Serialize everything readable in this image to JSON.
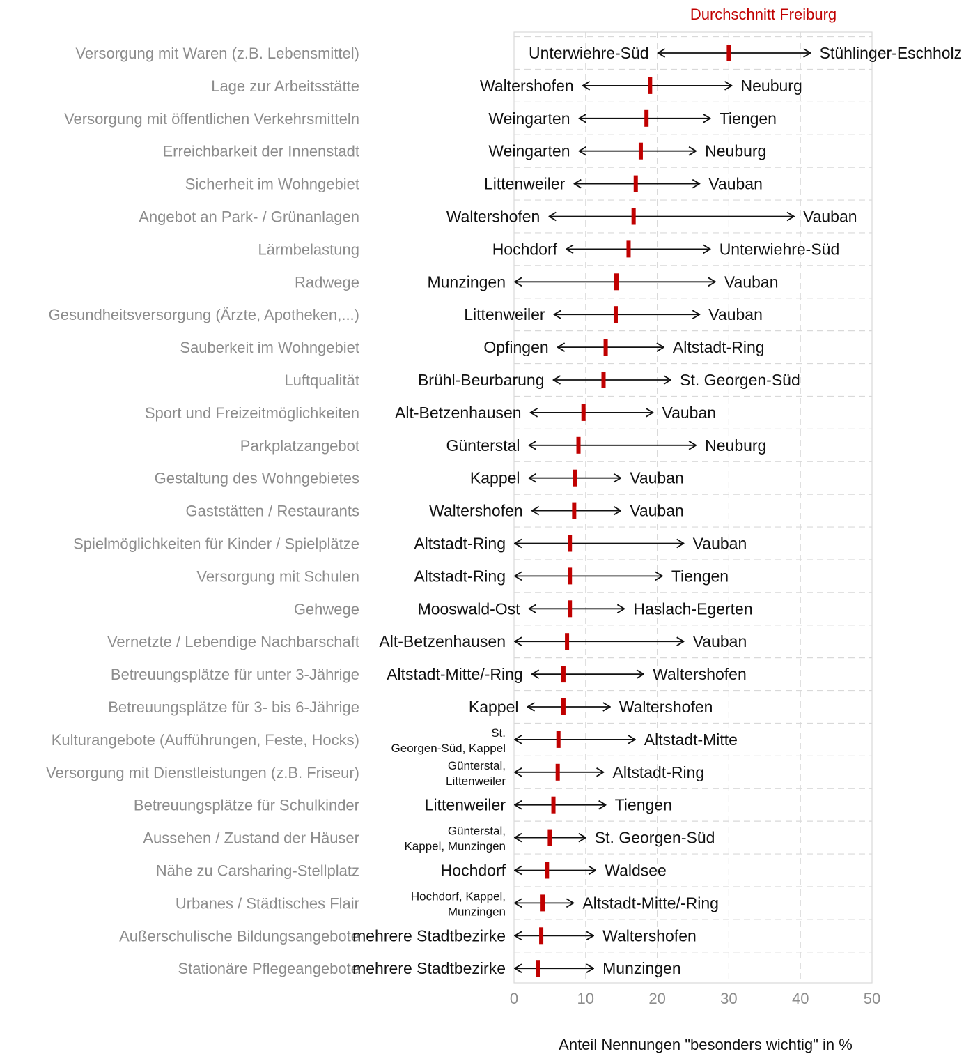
{
  "legend": {
    "label": "Durchschnitt Freiburg",
    "color": "#c00000"
  },
  "chart_data": {
    "type": "range",
    "title": "",
    "xlabel": "Anteil Nennungen \"besonders wichtig\" in %",
    "ylabel": "",
    "xlim": [
      0,
      50
    ],
    "xticks": [
      0,
      10,
      20,
      30,
      40,
      50
    ],
    "grid": true,
    "legend_position": "top",
    "series": [
      {
        "name": "Durchschnitt Freiburg",
        "color": "#c00000"
      }
    ],
    "rows": [
      {
        "category": "Versorgung mit Waren (z.B. Lebensmittel)",
        "min": 20,
        "avg": 30,
        "max": 41.5,
        "min_label": "Unterwiehre-Süd",
        "max_label": "Stühlinger-Eschholz"
      },
      {
        "category": "Lage zur Arbeitsstätte",
        "min": 9.5,
        "avg": 19,
        "max": 30.5,
        "min_label": "Waltershofen",
        "max_label": "Neuburg"
      },
      {
        "category": "Versorgung mit öffentlichen Verkehrsmitteln",
        "min": 9,
        "avg": 18.5,
        "max": 27.5,
        "min_label": "Weingarten",
        "max_label": "Tiengen"
      },
      {
        "category": "Erreichbarkeit der Innenstadt",
        "min": 9,
        "avg": 17.7,
        "max": 25.5,
        "min_label": "Weingarten",
        "max_label": "Neuburg"
      },
      {
        "category": "Sicherheit im Wohngebiet",
        "min": 8.3,
        "avg": 17,
        "max": 26,
        "min_label": "Littenweiler",
        "max_label": "Vauban"
      },
      {
        "category": "Angebot an Park- / Grünanlagen",
        "min": 4.8,
        "avg": 16.7,
        "max": 39.2,
        "min_label": "Waltershofen",
        "max_label": "Vauban"
      },
      {
        "category": "Lärmbelastung",
        "min": 7.2,
        "avg": 16,
        "max": 27.5,
        "min_label": "Hochdorf",
        "max_label": "Unterwiehre-Süd"
      },
      {
        "category": "Radwege",
        "min": 0,
        "avg": 14.3,
        "max": 28.2,
        "min_label": "Munzingen",
        "max_label": "Vauban"
      },
      {
        "category": "Gesundheitsversorgung (Ärzte, Apotheken,...)",
        "min": 5.5,
        "avg": 14.2,
        "max": 26,
        "min_label": "Littenweiler",
        "max_label": "Vauban"
      },
      {
        "category": "Sauberkeit im Wohngebiet",
        "min": 6,
        "avg": 12.8,
        "max": 21,
        "min_label": "Opfingen",
        "max_label": "Altstadt-Ring"
      },
      {
        "category": "Luftqualität",
        "min": 5.4,
        "avg": 12.5,
        "max": 22,
        "min_label": "Brühl-Beurbarung",
        "max_label": "St. Georgen-Süd"
      },
      {
        "category": "Sport und Freizeitmöglichkeiten",
        "min": 2.2,
        "avg": 9.7,
        "max": 19.5,
        "min_label": "Alt-Betzenhausen",
        "max_label": "Vauban"
      },
      {
        "category": "Parkplatzangebot",
        "min": 2,
        "avg": 9,
        "max": 25.5,
        "min_label": "Günterstal",
        "max_label": "Neuburg"
      },
      {
        "category": "Gestaltung des Wohngebietes",
        "min": 2,
        "avg": 8.5,
        "max": 15,
        "min_label": "Kappel",
        "max_label": "Vauban"
      },
      {
        "category": "Gaststätten / Restaurants",
        "min": 2.4,
        "avg": 8.4,
        "max": 15,
        "min_label": "Waltershofen",
        "max_label": "Vauban"
      },
      {
        "category": "Spielmöglichkeiten für Kinder / Spielplätze",
        "min": 0,
        "avg": 7.8,
        "max": 23.8,
        "min_label": "Altstadt-Ring",
        "max_label": "Vauban"
      },
      {
        "category": "Versorgung mit Schulen",
        "min": 0,
        "avg": 7.8,
        "max": 20.8,
        "min_label": "Altstadt-Ring",
        "max_label": "Tiengen"
      },
      {
        "category": "Gehwege",
        "min": 2,
        "avg": 7.8,
        "max": 15.5,
        "min_label": "Mooswald-Ost",
        "max_label": "Haslach-Egerten"
      },
      {
        "category": "Vernetzte / Lebendige Nachbarschaft",
        "min": 0,
        "avg": 7.4,
        "max": 23.8,
        "min_label": "Alt-Betzenhausen",
        "max_label": "Vauban"
      },
      {
        "category": "Betreuungsplätze für unter 3-Jährige",
        "min": 2.4,
        "avg": 6.9,
        "max": 18.2,
        "min_label": "Altstadt-Mitte/-Ring",
        "max_label": "Waltershofen"
      },
      {
        "category": "Betreuungsplätze für 3- bis 6-Jährige",
        "min": 1.8,
        "avg": 6.9,
        "max": 13.5,
        "min_label": "Kappel",
        "max_label": "Waltershofen"
      },
      {
        "category": "Kulturangebote (Aufführungen, Feste, Hocks)",
        "min": 0,
        "avg": 6.2,
        "max": 17,
        "min_label": "St. Georgen-Süd, Kappel",
        "max_label": "Altstadt-Mitte"
      },
      {
        "category": "Versorgung mit Dienstleistungen (z.B. Friseur)",
        "min": 0,
        "avg": 6.1,
        "max": 12.6,
        "min_label": "Günterstal, Littenweiler",
        "max_label": "Altstadt-Ring"
      },
      {
        "category": "Betreuungsplätze für Schulkinder",
        "min": 0,
        "avg": 5.5,
        "max": 12.9,
        "min_label": "Littenweiler",
        "max_label": "Tiengen"
      },
      {
        "category": "Aussehen / Zustand der Häuser",
        "min": 0,
        "avg": 5,
        "max": 10.1,
        "min_label": "Günterstal, Kappel, Munzingen",
        "max_label": "St. Georgen-Süd"
      },
      {
        "category": "Nähe zu Carsharing-Stellplatz",
        "min": 0,
        "avg": 4.6,
        "max": 11.5,
        "min_label": "Hochdorf",
        "max_label": "Waldsee"
      },
      {
        "category": "Urbanes / Städtisches Flair",
        "min": 0,
        "avg": 4,
        "max": 8.4,
        "min_label": "Hochdorf, Kappel, Munzingen",
        "max_label": "Altstadt-Mitte/-Ring"
      },
      {
        "category": "Außerschulische Bildungsangebote",
        "min": 0,
        "avg": 3.8,
        "max": 11.2,
        "min_label": "mehrere Stadtbezirke",
        "max_label": "Waltershofen"
      },
      {
        "category": "Stationäre Pflegeangebote",
        "min": 0,
        "avg": 3.4,
        "max": 11.2,
        "min_label": "mehrere Stadtbezirke",
        "max_label": "Munzingen"
      }
    ]
  }
}
